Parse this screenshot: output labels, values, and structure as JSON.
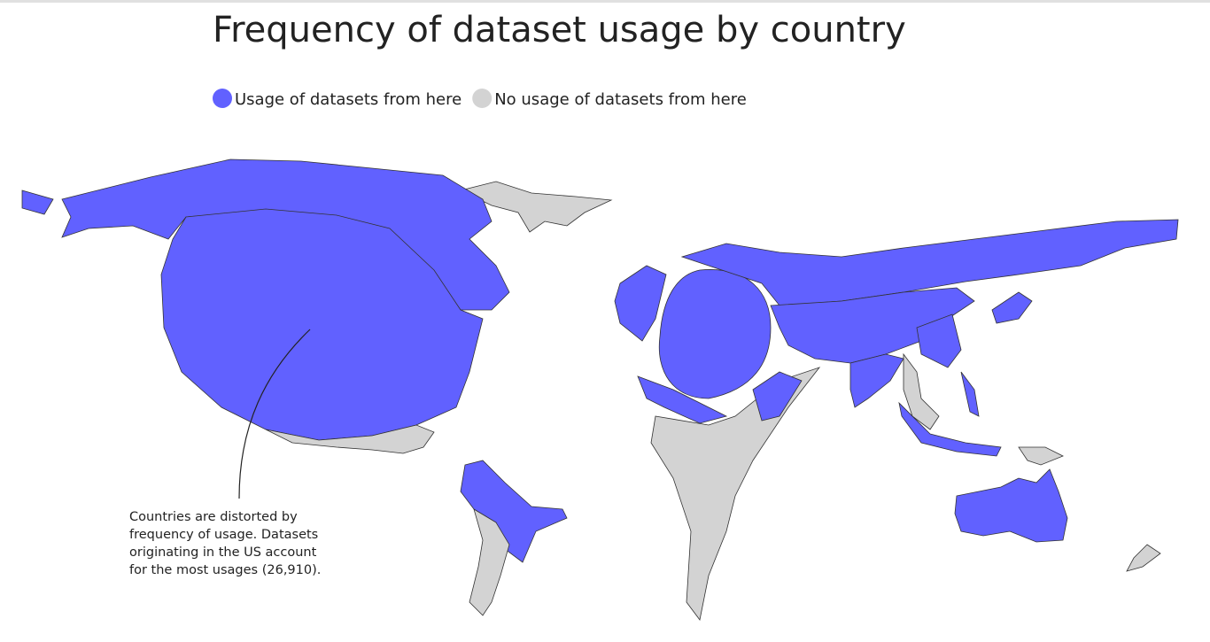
{
  "header": {
    "title": "Frequency of dataset usage by country"
  },
  "legend": [
    {
      "label": "Usage of datasets from here",
      "color": "#6161ff"
    },
    {
      "label": "No usage of datasets from here",
      "color": "#d3d3d3"
    }
  ],
  "annotation": {
    "lines": [
      "Countries are distorted by",
      "frequency of usage. Datasets",
      "originating in the US account",
      "for the most usages (26,910)."
    ]
  }
}
